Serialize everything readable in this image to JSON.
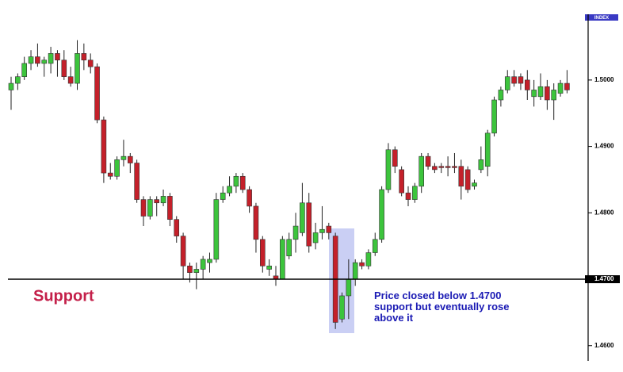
{
  "chart_data": {
    "type": "candlestick",
    "index_label": "INDEX",
    "open": [
      1.4985,
      1.4995,
      1.5005,
      1.5025,
      1.5035,
      1.5025,
      1.5025,
      1.504,
      1.503,
      1.5005,
      1.4995,
      1.504,
      1.503,
      1.502,
      1.494,
      1.486,
      1.4855,
      1.488,
      1.4885,
      1.4875,
      1.482,
      1.4795,
      1.482,
      1.4815,
      1.4825,
      1.479,
      1.4765,
      1.472,
      1.471,
      1.4715,
      1.4725,
      1.473,
      1.482,
      1.483,
      1.484,
      1.4855,
      1.4835,
      1.481,
      1.476,
      1.4715,
      1.4705,
      1.47,
      1.4735,
      1.476,
      1.477,
      1.4815,
      1.4755,
      1.477,
      1.478,
      1.4765,
      1.464,
      1.4675,
      1.47,
      1.4725,
      1.472,
      1.474,
      1.476,
      1.4835,
      1.4895,
      1.4865,
      1.483,
      1.482,
      1.484,
      1.4885,
      1.487,
      1.487,
      1.487,
      1.487,
      1.487,
      1.4865,
      1.484,
      1.4865,
      1.487,
      1.492,
      1.497,
      1.4985,
      1.5005,
      1.5005,
      1.5,
      1.4975,
      1.4975,
      1.499,
      1.497,
      1.498,
      1.4995
    ],
    "high": [
      1.5005,
      1.501,
      1.5035,
      1.5045,
      1.5055,
      1.5035,
      1.505,
      1.5045,
      1.5045,
      1.502,
      1.506,
      1.5055,
      1.504,
      1.5025,
      1.4945,
      1.4875,
      1.4885,
      1.491,
      1.489,
      1.488,
      1.4825,
      1.4825,
      1.4825,
      1.4835,
      1.483,
      1.4795,
      1.477,
      1.4725,
      1.4725,
      1.4735,
      1.474,
      1.483,
      1.484,
      1.4855,
      1.486,
      1.486,
      1.484,
      1.4815,
      1.4765,
      1.473,
      1.472,
      1.4765,
      1.477,
      1.48,
      1.4845,
      1.483,
      1.4785,
      1.481,
      1.4785,
      1.477,
      1.468,
      1.473,
      1.473,
      1.473,
      1.4745,
      1.477,
      1.484,
      1.4905,
      1.49,
      1.487,
      1.484,
      1.4845,
      1.489,
      1.489,
      1.4875,
      1.4875,
      1.4885,
      1.489,
      1.488,
      1.487,
      1.485,
      1.49,
      1.4925,
      1.4975,
      1.499,
      1.5015,
      1.5015,
      1.501,
      1.5015,
      1.5,
      1.501,
      1.5,
      1.4995,
      1.5,
      1.5015
    ],
    "low": [
      1.4955,
      1.4985,
      1.5,
      1.5015,
      1.502,
      1.5005,
      1.501,
      1.5005,
      1.5,
      1.499,
      1.4985,
      1.5015,
      1.501,
      1.4935,
      1.4845,
      1.485,
      1.485,
      1.487,
      1.486,
      1.4815,
      1.478,
      1.479,
      1.4795,
      1.481,
      1.478,
      1.4755,
      1.47,
      1.4695,
      1.4685,
      1.47,
      1.471,
      1.4725,
      1.4815,
      1.4825,
      1.483,
      1.483,
      1.48,
      1.474,
      1.471,
      1.4705,
      1.469,
      1.47,
      1.473,
      1.474,
      1.4765,
      1.474,
      1.4745,
      1.476,
      1.476,
      1.4625,
      1.4635,
      1.464,
      1.469,
      1.4715,
      1.4715,
      1.4735,
      1.4755,
      1.483,
      1.486,
      1.4825,
      1.481,
      1.4815,
      1.483,
      1.4865,
      1.486,
      1.486,
      1.4855,
      1.486,
      1.482,
      1.483,
      1.4835,
      1.486,
      1.4855,
      1.4915,
      1.496,
      1.498,
      1.499,
      1.4985,
      1.497,
      1.496,
      1.497,
      1.4955,
      1.494,
      1.4975,
      1.498
    ],
    "close": [
      1.4995,
      1.5005,
      1.5025,
      1.5035,
      1.5025,
      1.503,
      1.504,
      1.503,
      1.5005,
      1.4995,
      1.504,
      1.503,
      1.502,
      1.494,
      1.486,
      1.4855,
      1.488,
      1.4885,
      1.4875,
      1.482,
      1.4795,
      1.482,
      1.4815,
      1.4825,
      1.479,
      1.4765,
      1.472,
      1.471,
      1.4715,
      1.473,
      1.473,
      1.482,
      1.483,
      1.484,
      1.4855,
      1.4835,
      1.481,
      1.476,
      1.472,
      1.472,
      1.47,
      1.476,
      1.476,
      1.478,
      1.4815,
      1.475,
      1.477,
      1.4775,
      1.477,
      1.4635,
      1.4675,
      1.47,
      1.4725,
      1.472,
      1.474,
      1.476,
      1.4835,
      1.4895,
      1.487,
      1.483,
      1.482,
      1.484,
      1.4885,
      1.487,
      1.4865,
      1.4868,
      1.4868,
      1.4868,
      1.484,
      1.4835,
      1.4845,
      1.488,
      1.492,
      1.497,
      1.4985,
      1.5005,
      1.4995,
      1.4995,
      1.4985,
      1.4985,
      1.499,
      1.497,
      1.4985,
      1.4995,
      1.4985
    ],
    "up_color": "#3cc43c",
    "down_color": "#c4202a",
    "ylim": [
      1.4577,
      1.5099
    ],
    "yticks": [
      {
        "value": 1.46,
        "label": "1.4600"
      },
      {
        "value": 1.48,
        "label": "1.4800"
      },
      {
        "value": 1.49,
        "label": "1.4900"
      },
      {
        "value": 1.5,
        "label": "1.5000"
      }
    ],
    "support": {
      "value": 1.47,
      "label": "1.4700",
      "name": "Support"
    },
    "annotation": [
      "Price closed below 1.4700",
      "support but eventually rose",
      "above it"
    ]
  }
}
